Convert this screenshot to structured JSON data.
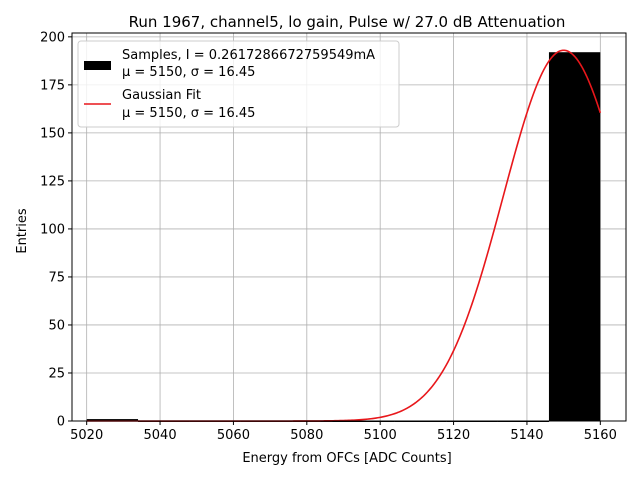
{
  "chart_data": {
    "type": "bar",
    "title": "Run 1967, channel5, lo gain, Pulse w/ 27.0 dB Attenuation",
    "xlabel": "Energy from OFCs [ADC Counts]",
    "ylabel": "Entries",
    "xlim": [
      5016,
      5167
    ],
    "ylim": [
      0,
      202
    ],
    "xticks": [
      5020,
      5040,
      5060,
      5080,
      5100,
      5120,
      5140,
      5160
    ],
    "yticks": [
      0,
      25,
      50,
      75,
      100,
      125,
      150,
      175,
      200
    ],
    "grid": true,
    "legend_position": "top-left",
    "bins": [
      {
        "x0": 5020,
        "x1": 5034,
        "count": 1
      },
      {
        "x0": 5034,
        "x1": 5048,
        "count": 0
      },
      {
        "x0": 5048,
        "x1": 5062,
        "count": 0
      },
      {
        "x0": 5062,
        "x1": 5076,
        "count": 0
      },
      {
        "x0": 5076,
        "x1": 5090,
        "count": 0
      },
      {
        "x0": 5090,
        "x1": 5104,
        "count": 0
      },
      {
        "x0": 5104,
        "x1": 5118,
        "count": 0
      },
      {
        "x0": 5118,
        "x1": 5132,
        "count": 0
      },
      {
        "x0": 5132,
        "x1": 5146,
        "count": 0
      },
      {
        "x0": 5146,
        "x1": 5160,
        "count": 192
      }
    ],
    "fit": {
      "amplitude": 193,
      "mu": 5150,
      "sigma": 16.45,
      "x_start": 5020,
      "x_end": 5160
    },
    "series": [
      {
        "name": "Samples, I = 0.2617286672759549mA",
        "stats": "$\\mu$ = 5150, $\\sigma$ = 16.45",
        "stats_display": "μ = 5150, σ = 16.45",
        "color": "#000000"
      },
      {
        "name": "Gaussian Fit",
        "stats": "$\\mu$ = 5150, $\\sigma$ = 16.45",
        "stats_display": "μ = 5150, σ = 16.45",
        "color": "#e8171b"
      }
    ]
  }
}
